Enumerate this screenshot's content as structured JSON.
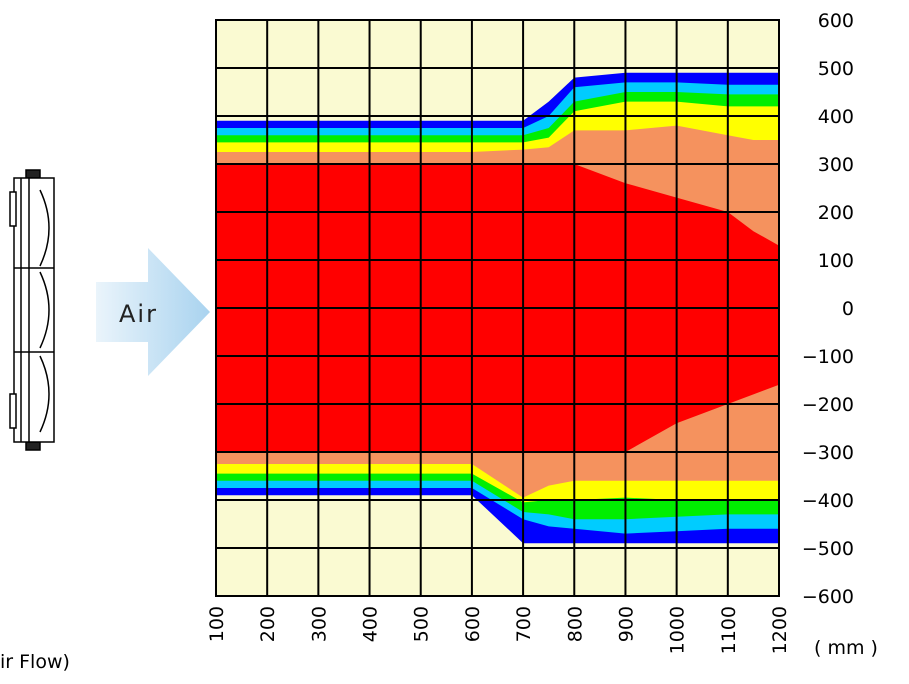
{
  "chart_data": {
    "type": "area",
    "xunit": "( mm )",
    "x_ticks": [
      100,
      200,
      300,
      400,
      500,
      600,
      700,
      800,
      900,
      1000,
      1100,
      1200
    ],
    "y_ticks": [
      600,
      500,
      400,
      300,
      200,
      100,
      0,
      -100,
      -200,
      -300,
      -400,
      -500,
      -600
    ],
    "xlim": [
      100,
      1200
    ],
    "ylim": [
      -600,
      600
    ],
    "grid": true,
    "background_color": "#fafad2",
    "x": [
      100,
      200,
      300,
      400,
      500,
      600,
      700,
      750,
      800,
      900,
      1000,
      1100,
      1150,
      1200
    ],
    "bands": [
      {
        "color": "#0000ff",
        "upper": [
          390,
          390,
          390,
          390,
          390,
          390,
          390,
          430,
          480,
          490,
          490,
          490,
          490,
          490
        ],
        "lower": [
          -390,
          -390,
          -390,
          -390,
          -390,
          -390,
          -490,
          -490,
          -490,
          -490,
          -490,
          -490,
          -490,
          -490
        ]
      },
      {
        "color": "#00ccff",
        "upper": [
          375,
          375,
          375,
          375,
          375,
          375,
          375,
          400,
          460,
          470,
          470,
          465,
          465,
          465
        ],
        "lower": [
          -375,
          -375,
          -375,
          -375,
          -375,
          -375,
          -440,
          -455,
          -460,
          -470,
          -465,
          -460,
          -460,
          -460
        ]
      },
      {
        "color": "#00ee00",
        "upper": [
          360,
          360,
          360,
          360,
          360,
          360,
          360,
          375,
          430,
          450,
          450,
          445,
          445,
          445
        ],
        "lower": [
          -360,
          -360,
          -360,
          -360,
          -360,
          -360,
          -425,
          -430,
          -440,
          -440,
          -435,
          -430,
          -430,
          -430
        ]
      },
      {
        "color": "#ffff00",
        "upper": [
          345,
          345,
          345,
          345,
          345,
          345,
          345,
          355,
          410,
          430,
          430,
          420,
          420,
          420
        ],
        "lower": [
          -345,
          -345,
          -345,
          -345,
          -345,
          -345,
          -405,
          -400,
          -400,
          -395,
          -400,
          -400,
          -400,
          -400
        ]
      },
      {
        "color": "#f5925e",
        "upper": [
          325,
          325,
          325,
          325,
          325,
          325,
          330,
          335,
          370,
          370,
          380,
          360,
          350,
          350
        ],
        "lower": [
          -325,
          -325,
          -325,
          -325,
          -325,
          -325,
          -395,
          -370,
          -360,
          -360,
          -360,
          -360,
          -360,
          -360
        ]
      },
      {
        "color": "#ff0000",
        "upper": [
          300,
          300,
          300,
          300,
          300,
          300,
          300,
          300,
          300,
          260,
          230,
          200,
          160,
          130
        ],
        "lower": [
          -300,
          -300,
          -300,
          -300,
          -300,
          -300,
          -300,
          -300,
          -300,
          -300,
          -240,
          -200,
          -180,
          -160
        ]
      }
    ]
  },
  "air_label": "Air",
  "caption": "ir Flow)"
}
